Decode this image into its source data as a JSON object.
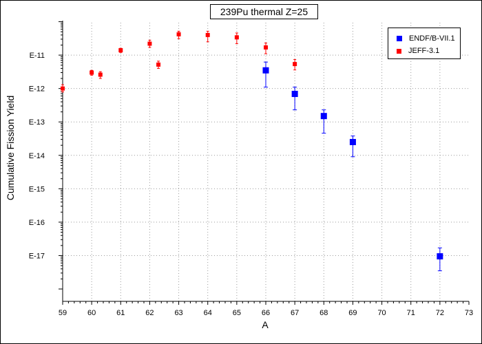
{
  "chart_data": {
    "type": "scatter",
    "title": "239Pu thermal Z=25",
    "xlabel": "A",
    "ylabel": "Cumulative Fission Yield",
    "xlim": [
      59,
      73
    ],
    "ylim_log10": [
      -18,
      -10
    ],
    "y_scale": "log",
    "grid": true,
    "legend_position": "top-right",
    "x_ticks": [
      "59",
      "60",
      "61",
      "62",
      "63",
      "64",
      "65",
      "66",
      "67",
      "68",
      "69",
      "70",
      "71",
      "72",
      "73"
    ],
    "y_ticks": [
      {
        "label": "E-11",
        "exp": -11
      },
      {
        "label": "E-12",
        "exp": -12
      },
      {
        "label": "E-13",
        "exp": -13
      },
      {
        "label": "E-14",
        "exp": -14
      },
      {
        "label": "E-15",
        "exp": -15
      },
      {
        "label": "E-16",
        "exp": -16
      },
      {
        "label": "E-17",
        "exp": -17
      }
    ],
    "series": [
      {
        "name": "ENDF/B-VII.1",
        "color": "#0000ff",
        "marker": "square-large",
        "points": [
          {
            "x": 66,
            "y": 3.5e-12,
            "lo": 1.1e-12,
            "hi": 6.2e-12
          },
          {
            "x": 67,
            "y": 6.9e-13,
            "lo": 2.3e-13,
            "hi": 1.1e-12
          },
          {
            "x": 68,
            "y": 1.5e-13,
            "lo": 4.6e-14,
            "hi": 2.3e-13
          },
          {
            "x": 69,
            "y": 2.5e-14,
            "lo": 9.1e-15,
            "hi": 3.8e-14
          },
          {
            "x": 72,
            "y": 9.5e-18,
            "lo": 3.5e-18,
            "hi": 1.7e-17
          }
        ]
      },
      {
        "name": "JEFF-3.1",
        "color": "#ff0000",
        "marker": "square-small",
        "points": [
          {
            "x": 59,
            "y": 1e-12,
            "lo": 7.9e-13,
            "hi": 1.3e-12
          },
          {
            "x": 60,
            "y": 3e-12,
            "lo": 2.5e-12,
            "hi": 3.5e-12
          },
          {
            "x": 60.3,
            "y": 2.6e-12,
            "lo": 2e-12,
            "hi": 3.2e-12
          },
          {
            "x": 61,
            "y": 1.4e-11,
            "lo": 1.2e-11,
            "hi": 1.6e-11
          },
          {
            "x": 62,
            "y": 2.2e-11,
            "lo": 1.7e-11,
            "hi": 2.8e-11
          },
          {
            "x": 62.3,
            "y": 5.2e-12,
            "lo": 4e-12,
            "hi": 6.6e-12
          },
          {
            "x": 63,
            "y": 4.2e-11,
            "lo": 3.1e-11,
            "hi": 5.2e-11
          },
          {
            "x": 64,
            "y": 4e-11,
            "lo": 2.5e-11,
            "hi": 5.2e-11
          },
          {
            "x": 65,
            "y": 3.4e-11,
            "lo": 2.2e-11,
            "hi": 4.6e-11
          },
          {
            "x": 66,
            "y": 1.7e-11,
            "lo": 1.1e-11,
            "hi": 2.3e-11
          },
          {
            "x": 67,
            "y": 5.4e-12,
            "lo": 3.6e-12,
            "hi": 7.4e-12
          }
        ]
      }
    ]
  }
}
